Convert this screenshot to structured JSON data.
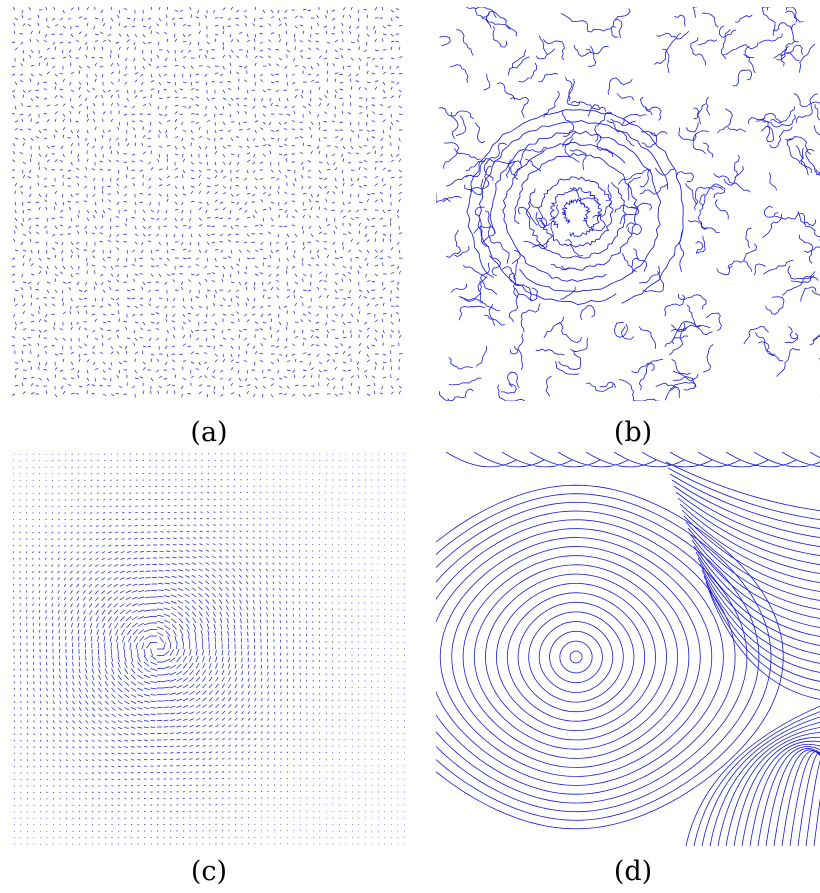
{
  "panels": [
    {
      "id": "a",
      "caption": "(a)",
      "kind": "noisy-arrows"
    },
    {
      "id": "b",
      "caption": "(b)",
      "kind": "noisy-streamlines"
    },
    {
      "id": "c",
      "caption": "(c)",
      "kind": "smooth-arrows"
    },
    {
      "id": "d",
      "caption": "(d)",
      "kind": "smooth-streamlines"
    }
  ],
  "colors": {
    "stroke": "#1a1ad6",
    "background": "#ffffff"
  }
}
